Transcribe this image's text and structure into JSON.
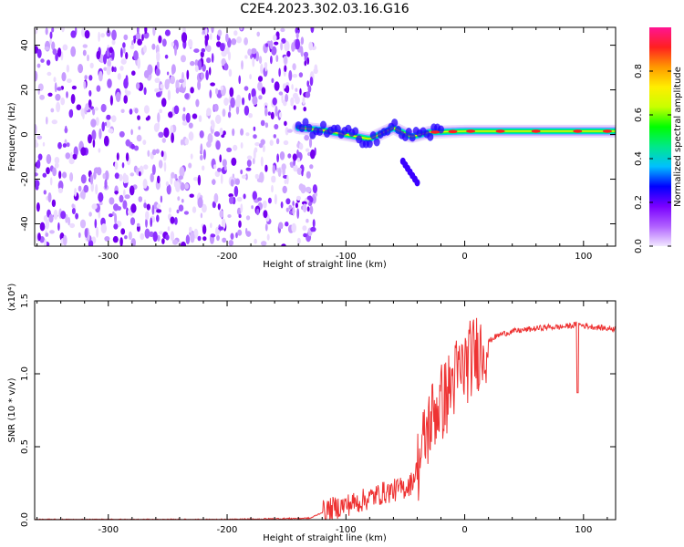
{
  "title": "C2E4.2023.302.03.16.G16",
  "colors": {
    "snr_line": "#ee3333",
    "colorbar_stops": [
      "#f2e8ff",
      "#b060ff",
      "#7a00ff",
      "#0000ff",
      "#00c0ff",
      "#00e88a",
      "#00ff00",
      "#c8ff00",
      "#ffee00",
      "#ff9900",
      "#ff2020",
      "#ff1493"
    ]
  },
  "chart_data": [
    {
      "type": "heatmap",
      "xlabel": "Height of straight line (km)",
      "ylabel": "Frequency (Hz)",
      "xlim": [
        -362,
        127
      ],
      "ylim": [
        -50,
        48
      ],
      "xticks": [
        -300,
        -200,
        -100,
        0,
        100
      ],
      "xtick_labels": [
        "-300",
        "-200",
        "-100",
        "0",
        "100"
      ],
      "yticks": [
        -40,
        -20,
        0,
        20,
        40
      ],
      "ytick_labels": [
        "-40",
        "-20",
        "0",
        "20",
        "40"
      ],
      "colorbar": {
        "label": "Normalized spectral amplitude",
        "range": [
          0,
          1
        ],
        "ticks": [
          0.0,
          0.2,
          0.4,
          0.6,
          0.8
        ],
        "tick_labels": [
          "0.0",
          "0.2",
          "0.4",
          "0.6",
          "0.8"
        ]
      },
      "signal_track": [
        {
          "x": -140,
          "y": 3
        },
        {
          "x": -120,
          "y": 2
        },
        {
          "x": -100,
          "y": 0
        },
        {
          "x": -80,
          "y": -2
        },
        {
          "x": -60,
          "y": 3
        },
        {
          "x": -45,
          "y": -1
        },
        {
          "x": -30,
          "y": 1
        },
        {
          "x": 0,
          "y": 1.5
        },
        {
          "x": 50,
          "y": 1.5
        },
        {
          "x": 100,
          "y": 1.5
        },
        {
          "x": 127,
          "y": 1.5
        }
      ],
      "noise_region_x": [
        -362,
        -140
      ]
    },
    {
      "type": "line",
      "xlabel": "Height of straight line (km)",
      "ylabel": "SNR (10 * v/v)",
      "y_multiplier": "(x10⁴)",
      "xlim": [
        -362,
        127
      ],
      "ylim": [
        0,
        1.5
      ],
      "xticks": [
        -300,
        -200,
        -100,
        0,
        100
      ],
      "xtick_labels": [
        "-300",
        "-200",
        "-100",
        "0",
        "100"
      ],
      "yticks": [
        0.0,
        0.5,
        1.0,
        1.5
      ],
      "ytick_labels": [
        "0.0",
        "0.5",
        "1.0",
        "1.5"
      ],
      "series": [
        {
          "x": [
            -362,
            -300,
            -200,
            -130,
            -120,
            -110,
            -100,
            -90,
            -80,
            -70,
            -60,
            -50,
            -45,
            -40,
            -35,
            -30,
            -25,
            -20,
            -15,
            -10,
            -5,
            0,
            5,
            10,
            15,
            20,
            25,
            30,
            40,
            50,
            60,
            70,
            80,
            90,
            95,
            100,
            110,
            120,
            127
          ],
          "values": [
            0.0,
            0.0,
            0.0,
            0.01,
            0.05,
            0.08,
            0.1,
            0.12,
            0.15,
            0.18,
            0.2,
            0.22,
            0.25,
            0.35,
            0.5,
            0.65,
            0.75,
            0.8,
            0.85,
            0.95,
            1.0,
            1.05,
            1.1,
            1.15,
            1.18,
            1.22,
            1.25,
            1.27,
            1.29,
            1.3,
            1.31,
            1.32,
            1.32,
            1.33,
            1.34,
            1.33,
            1.32,
            1.31,
            1.31
          ]
        }
      ]
    }
  ]
}
